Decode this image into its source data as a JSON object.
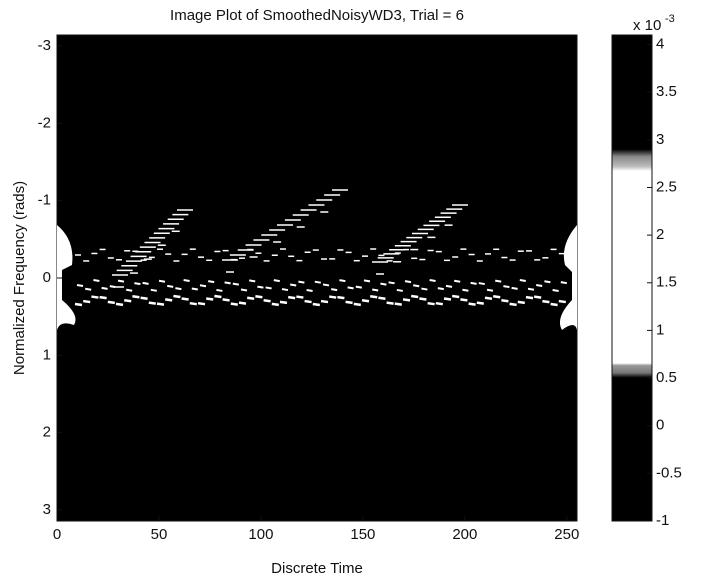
{
  "chart_data": {
    "type": "image",
    "title": "Image Plot of SmoothedNoisyWD3, Trial = 6",
    "xlabel": "Discrete Time",
    "ylabel": "Normalized Frequency (rads)",
    "xlim": [
      0,
      255
    ],
    "xticks": [
      0,
      50,
      100,
      150,
      200,
      250
    ],
    "ylim": [
      -3.1416,
      3.1416
    ],
    "yticks": [
      -3,
      -2,
      -1,
      0,
      1,
      2,
      3
    ],
    "y_reversed": true,
    "colorbar": {
      "lim": [
        -1,
        4.1
      ],
      "ticks": [
        -1,
        -0.5,
        0,
        0.5,
        1,
        1.5,
        2,
        2.5,
        3,
        3.5,
        4
      ],
      "label_base": "x 10",
      "label_exponent": "-3"
    }
  }
}
